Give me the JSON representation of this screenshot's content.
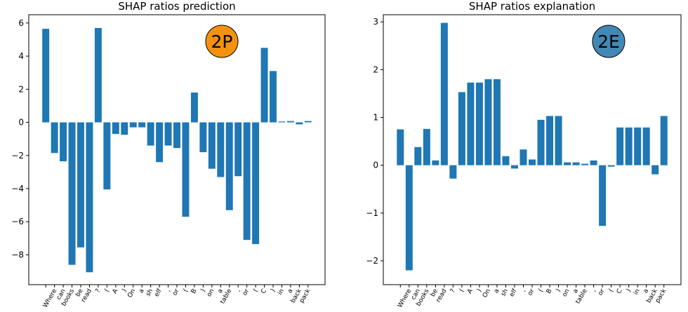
{
  "chart_data": [
    {
      "type": "bar",
      "title": "SHAP ratios prediction",
      "badge": {
        "label": "2P",
        "color": "#f5920d"
      },
      "bar_color": "#1f77b4",
      "ylim": [
        -9.8,
        6.5
      ],
      "yticks": [
        -8,
        -6,
        -4,
        -2,
        0,
        2,
        4,
        6
      ],
      "xlabel": "",
      "ylabel": "",
      "categories": [
        "",
        "Where",
        "can",
        "books",
        "be",
        "read",
        "?",
        "(",
        "A",
        ")",
        "On",
        "a",
        "sh",
        "elf",
        ",",
        "or",
        "(",
        "B",
        ")",
        "on",
        "a",
        "table",
        ",",
        "or",
        "(",
        "C",
        ")",
        "in",
        "a",
        "back",
        "pack"
      ],
      "values": [
        5.65,
        -1.85,
        -2.35,
        -8.6,
        -7.55,
        -9.05,
        5.7,
        -4.05,
        -0.7,
        -0.75,
        -0.3,
        -0.3,
        -1.4,
        -2.4,
        -1.4,
        -1.55,
        -5.7,
        1.8,
        -1.8,
        -2.8,
        -3.3,
        -5.3,
        -3.25,
        -7.1,
        -7.35,
        4.5,
        3.1,
        0.05,
        0.08,
        -0.12,
        0.08
      ]
    },
    {
      "type": "bar",
      "title": "SHAP ratios explanation",
      "badge": {
        "label": "2E",
        "color": "#4288b5"
      },
      "bar_color": "#1f77b4",
      "ylim": [
        -2.5,
        3.15
      ],
      "yticks": [
        -2,
        -1,
        0,
        1,
        2,
        3
      ],
      "xlabel": "",
      "ylabel": "",
      "categories": [
        "",
        "Where",
        "can",
        "books",
        "be",
        "read",
        "?",
        "(",
        "A",
        ")",
        "On",
        "a",
        "sh",
        "elf",
        ",",
        "or",
        "(",
        "B",
        ")",
        "on",
        "a",
        "table",
        ",",
        "or",
        "(",
        "C",
        ")",
        "in",
        "a",
        "back",
        "pack"
      ],
      "values": [
        0.75,
        -2.2,
        0.38,
        0.76,
        0.1,
        2.98,
        -0.28,
        1.53,
        1.73,
        1.73,
        1.8,
        1.8,
        0.19,
        -0.07,
        0.33,
        0.12,
        0.95,
        1.03,
        1.03,
        0.06,
        0.06,
        0.03,
        0.1,
        -1.27,
        -0.03,
        0.79,
        0.79,
        0.79,
        0.79,
        -0.19,
        1.03
      ]
    }
  ]
}
